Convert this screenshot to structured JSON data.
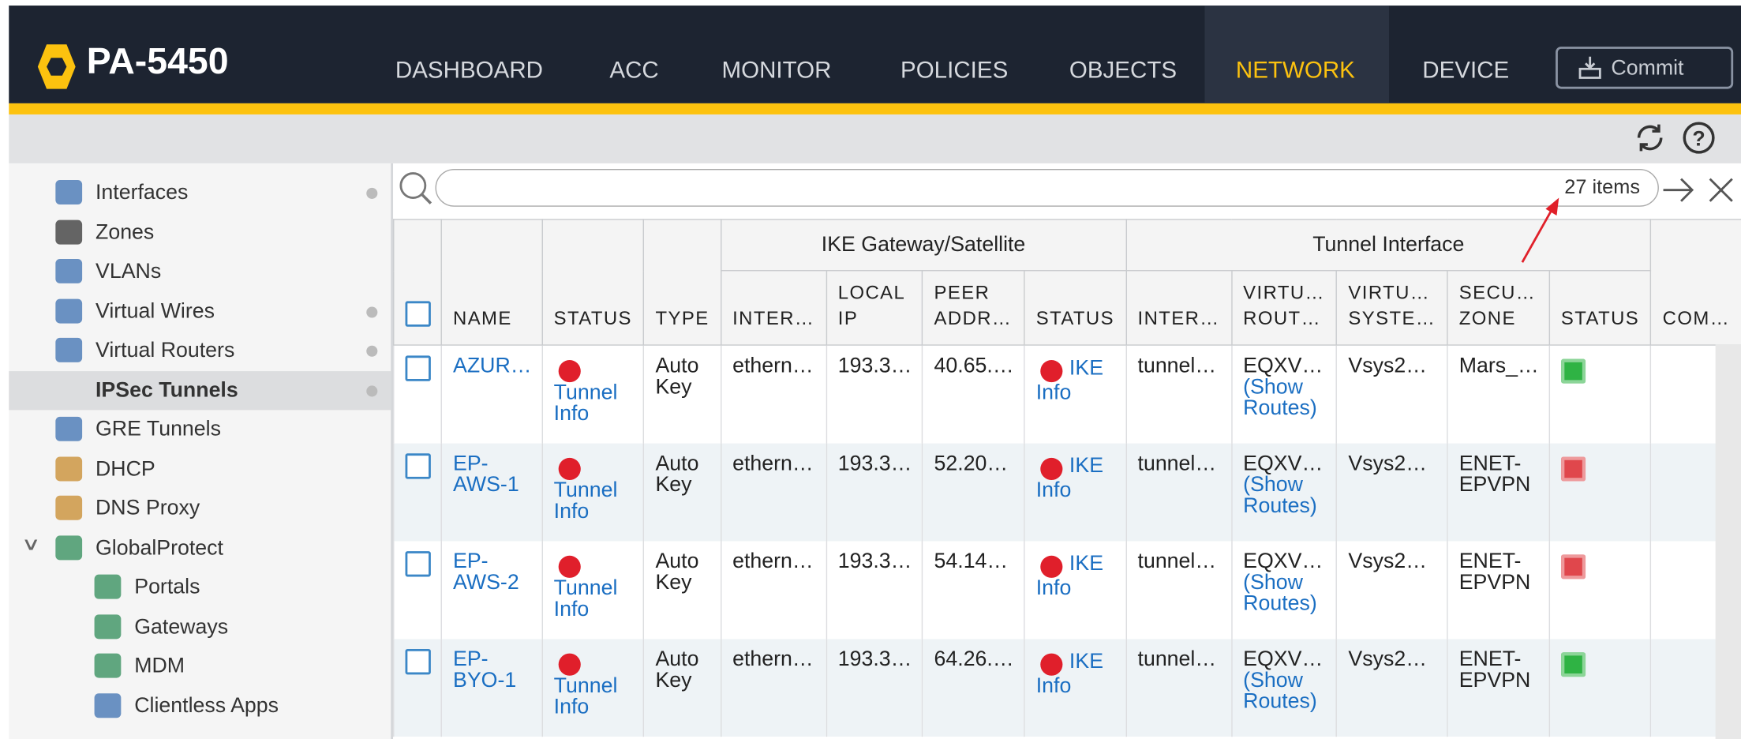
{
  "header": {
    "brand": "PA-5450",
    "nav": [
      "DASHBOARD",
      "ACC",
      "MONITOR",
      "POLICIES",
      "OBJECTS",
      "NETWORK",
      "DEVICE"
    ],
    "commit": "Commit"
  },
  "sidebar": {
    "items": [
      "Interfaces",
      "Zones",
      "VLANs",
      "Virtual Wires",
      "Virtual Routers",
      "IPSec Tunnels",
      "GRE Tunnels",
      "DHCP",
      "DNS Proxy",
      "GlobalProtect",
      "Portals",
      "Gateways",
      "MDM",
      "Clientless Apps"
    ]
  },
  "search": {
    "count": "27 items"
  },
  "table": {
    "groups": [
      "IKE Gateway/Satellite",
      "Tunnel Interface"
    ],
    "columns": [
      "NAME",
      "STATUS",
      "TYPE",
      "INTER…",
      "LOCAL IP",
      "PEER ADDR…",
      "STATUS",
      "INTER…",
      "VIRTU… ROUT…",
      "VIRTU… SYSTE…",
      "SECU… ZONE",
      "STATUS",
      "COM…"
    ],
    "rows": [
      {
        "name": "AZUR…",
        "tunnel_info": "Tunnel Info",
        "type": "Auto Key",
        "interface": "ethern…",
        "local_ip": "193.3…",
        "peer": "40.65.…",
        "ike_info": "IKE Info",
        "tunnel": "tunnel…",
        "router": "EQXV…",
        "routes": "(Show Routes)",
        "vsys": "Vsys2…",
        "zone": "Mars_…",
        "status_color": "#2fb344"
      },
      {
        "name": "EP-AWS-1",
        "tunnel_info": "Tunnel Info",
        "type": "Auto Key",
        "interface": "ethern…",
        "local_ip": "193.3…",
        "peer": "52.20…",
        "ike_info": "IKE Info",
        "tunnel": "tunnel…",
        "router": "EQXV…",
        "routes": "(Show Routes)",
        "vsys": "Vsys2…",
        "zone": "ENET-EPVPN",
        "status_color": "#e0474c"
      },
      {
        "name": "EP-AWS-2",
        "tunnel_info": "Tunnel Info",
        "type": "Auto Key",
        "interface": "ethern…",
        "local_ip": "193.3…",
        "peer": "54.14…",
        "ike_info": "IKE Info",
        "tunnel": "tunnel…",
        "router": "EQXV…",
        "routes": "(Show Routes)",
        "vsys": "Vsys2…",
        "zone": "ENET-EPVPN",
        "status_color": "#e0474c"
      },
      {
        "name": "EP-BYO-1",
        "tunnel_info": "Tunnel Info",
        "type": "Auto Key",
        "interface": "ethern…",
        "local_ip": "193.3…",
        "peer": "64.26.…",
        "ike_info": "IKE Info",
        "tunnel": "tunnel…",
        "router": "EQXV…",
        "routes": "(Show Routes)",
        "vsys": "Vsys2…",
        "zone": "ENET-EPVPN",
        "status_color": "#2fb344"
      }
    ]
  }
}
